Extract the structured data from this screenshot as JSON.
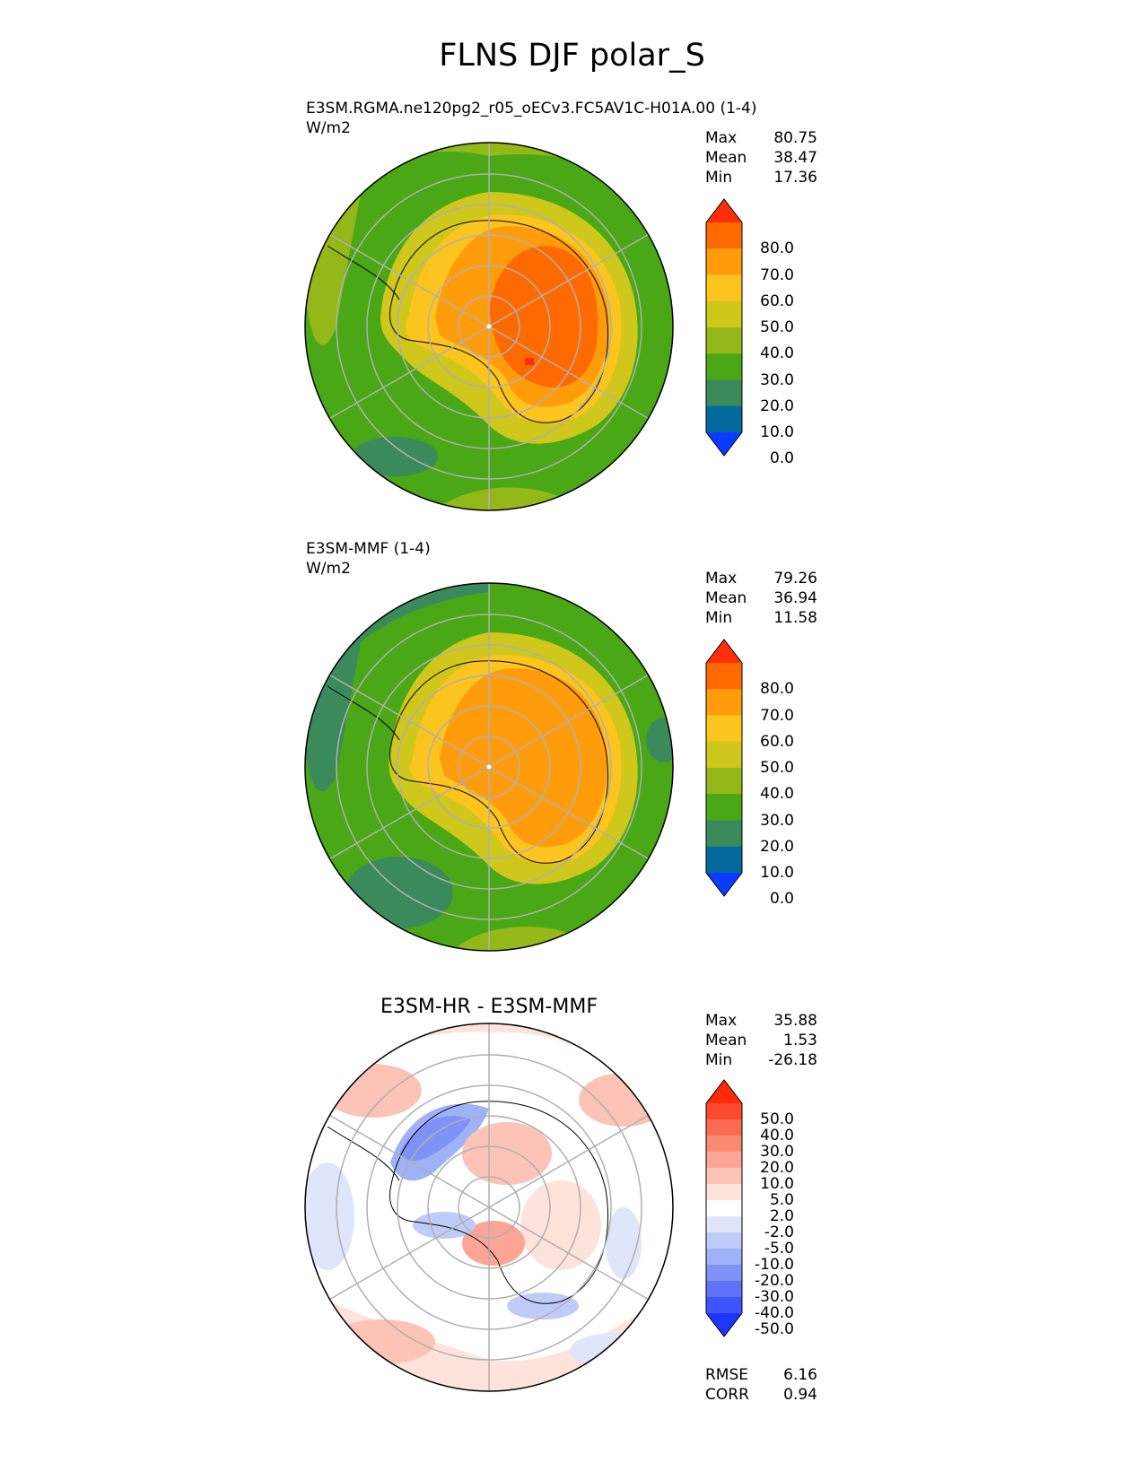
{
  "figure_title": "FLNS DJF polar_S",
  "chart_data": [
    {
      "type": "heatmap",
      "projection": "polar_S",
      "title": "E3SM.RGMA.ne120pg2_r05_oECv3.FC5AV1C-H01A.00 (1-4)",
      "units": "W/m2",
      "stats": {
        "max": "80.75",
        "mean": "38.47",
        "min": "17.36"
      },
      "stat_labels": {
        "max": "Max",
        "mean": "Mean",
        "min": "Min"
      },
      "colorbar": {
        "levels": [
          "80.0",
          "70.0",
          "60.0",
          "50.0",
          "40.0",
          "30.0",
          "20.0",
          "10.0",
          "0.0"
        ],
        "colors": [
          "#ff2f0a",
          "#ff6a00",
          "#ff9c0b",
          "#fbc41f",
          "#cfc71c",
          "#94b71a",
          "#4aa716",
          "#3a8a5c",
          "#04699c",
          "#0a3bff"
        ]
      }
    },
    {
      "type": "heatmap",
      "projection": "polar_S",
      "title": "E3SM-MMF (1-4)",
      "units": "W/m2",
      "stats": {
        "max": "79.26",
        "mean": "36.94",
        "min": "11.58"
      },
      "stat_labels": {
        "max": "Max",
        "mean": "Mean",
        "min": "Min"
      },
      "colorbar": {
        "levels": [
          "80.0",
          "70.0",
          "60.0",
          "50.0",
          "40.0",
          "30.0",
          "20.0",
          "10.0",
          "0.0"
        ],
        "colors": [
          "#ff2f0a",
          "#ff6a00",
          "#ff9c0b",
          "#fbc41f",
          "#cfc71c",
          "#94b71a",
          "#4aa716",
          "#3a8a5c",
          "#04699c",
          "#0a3bff"
        ]
      }
    },
    {
      "type": "heatmap",
      "projection": "polar_S",
      "title": "E3SM-HR - E3SM-MMF",
      "stats": {
        "max": "35.88",
        "mean": "1.53",
        "min": "-26.18"
      },
      "stat_labels": {
        "max": "Max",
        "mean": "Mean",
        "min": "Min"
      },
      "colorbar": {
        "levels": [
          "50.0",
          "40.0",
          "30.0",
          "20.0",
          "10.0",
          "5.0",
          "2.0",
          "-2.0",
          "-5.0",
          "-10.0",
          "-20.0",
          "-30.0",
          "-40.0",
          "-50.0"
        ],
        "colors": [
          "#ff2a0a",
          "#fc4a2e",
          "#fb6b52",
          "#fc8a73",
          "#fca597",
          "#fdc3b7",
          "#fde3dc",
          "#ffffff",
          "#dfe5fb",
          "#bfccf9",
          "#9fb1f7",
          "#7f93f6",
          "#5f73f7",
          "#3f55f9",
          "#1f35fb"
        ]
      },
      "metrics": {
        "rmse_label": "RMSE",
        "rmse": "6.16",
        "corr_label": "CORR",
        "corr": "0.94"
      }
    }
  ]
}
